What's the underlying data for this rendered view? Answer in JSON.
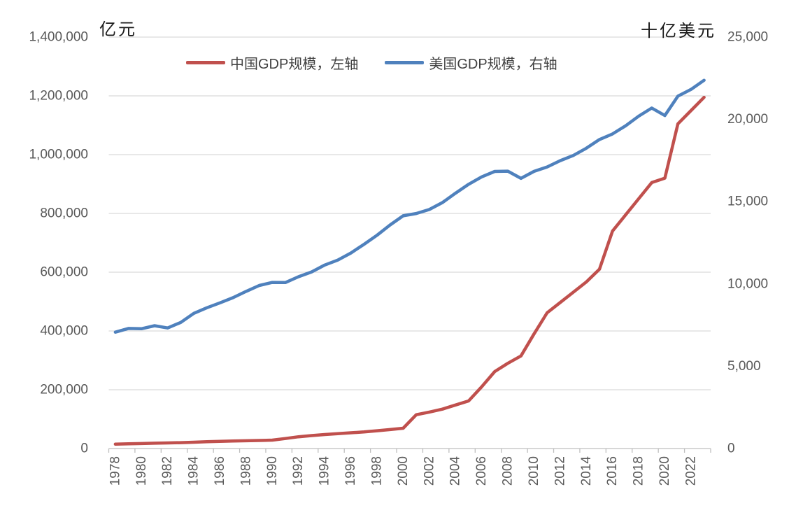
{
  "chart": {
    "left_axis_title": "亿元",
    "right_axis_title": "十亿美元",
    "legend": [
      {
        "label": "中国GDP规模，左轴",
        "color": "#C0504D"
      },
      {
        "label": "美国GDP规模，右轴",
        "color": "#4F81BD"
      }
    ]
  },
  "chart_data": {
    "type": "line",
    "title": "",
    "x": [
      1978,
      1979,
      1980,
      1981,
      1982,
      1983,
      1984,
      1985,
      1986,
      1987,
      1988,
      1989,
      1990,
      1991,
      1992,
      1993,
      1994,
      1995,
      1996,
      1997,
      1998,
      1999,
      2000,
      2001,
      2002,
      2003,
      2004,
      2005,
      2006,
      2007,
      2008,
      2009,
      2010,
      2011,
      2012,
      2013,
      2014,
      2015,
      2016,
      2017,
      2018,
      2019,
      2020,
      2021,
      2022,
      2023
    ],
    "x_tick_labels": [
      "1978",
      "1980",
      "1982",
      "1984",
      "1986",
      "1988",
      "1990",
      "1992",
      "1994",
      "1996",
      "1998",
      "2000",
      "2002",
      "2004",
      "2006",
      "2008",
      "2010",
      "2012",
      "2014",
      "2016",
      "2018",
      "2020",
      "2022"
    ],
    "series": [
      {
        "name": "中国GDP规模，左轴",
        "axis": "left",
        "color": "#C0504D",
        "values": [
          15000,
          16000,
          17000,
          18000,
          19000,
          20000,
          21500,
          23000,
          24500,
          25500,
          26500,
          27500,
          28500,
          34000,
          40000,
          44000,
          47500,
          50500,
          53500,
          56500,
          60500,
          64500,
          69000,
          115000,
          124000,
          134000,
          148000,
          162000,
          210000,
          262000,
          290000,
          315000,
          390000,
          462000,
          497000,
          532000,
          567000,
          610000,
          740000,
          795000,
          850000,
          905000,
          920000,
          1105000,
          1150000,
          1195000
        ]
      },
      {
        "name": "美国GDP规模，右轴",
        "axis": "right",
        "color": "#4F81BD",
        "values": [
          7070,
          7295,
          7280,
          7460,
          7325,
          7660,
          8215,
          8555,
          8850,
          9165,
          9550,
          9905,
          10095,
          10085,
          10440,
          10730,
          11150,
          11450,
          11880,
          12405,
          12960,
          13585,
          14140,
          14280,
          14525,
          14945,
          15515,
          16055,
          16505,
          16835,
          16855,
          16415,
          16840,
          17110,
          17490,
          17805,
          18250,
          18775,
          19115,
          19610,
          20195,
          20690,
          20235,
          21410,
          21820,
          22375
        ]
      }
    ],
    "left_axis": {
      "title": "亿元",
      "min": 0,
      "max": 1400000,
      "step": 200000,
      "tick_labels": [
        "0",
        "200,000",
        "400,000",
        "600,000",
        "800,000",
        "1,000,000",
        "1,200,000",
        "1,400,000"
      ]
    },
    "right_axis": {
      "title": "十亿美元",
      "min": 0,
      "max": 25000,
      "step": 5000,
      "tick_labels": [
        "0",
        "5,000",
        "10,000",
        "15,000",
        "20,000",
        "25,000"
      ]
    },
    "grid": true,
    "legend_position": "top"
  }
}
